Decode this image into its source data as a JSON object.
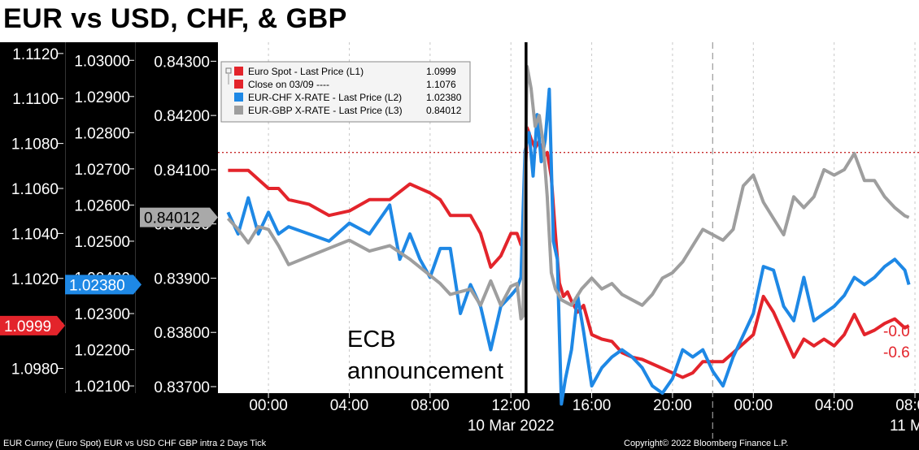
{
  "chart_data": {
    "type": "line",
    "title": "EUR vs USD, CHF, & GBP",
    "x_tick_labels": [
      "00:00",
      "04:00",
      "08:00",
      "12:00",
      "16:00",
      "20:00",
      "00:00",
      "04:00",
      "08:00"
    ],
    "date_labels": [
      "10 Mar 2022",
      "11 M"
    ],
    "axes": [
      {
        "id": "L1",
        "ticks": [
          "1.1120",
          "1.1100",
          "1.1080",
          "1.1060",
          "1.1040",
          "1.1020",
          "1.1000",
          "1.0980"
        ],
        "ylim": [
          1.0969,
          1.1125
        ]
      },
      {
        "id": "L2",
        "ticks": [
          "1.03000",
          "1.02900",
          "1.02800",
          "1.02700",
          "1.02600",
          "1.02500",
          "1.02400",
          "1.02300",
          "1.02200",
          "1.02100"
        ],
        "ylim": [
          1.0208,
          1.0305
        ]
      },
      {
        "id": "L3",
        "ticks": [
          "0.84300",
          "0.84200",
          "0.84100",
          "0.84000",
          "0.83900",
          "0.83800",
          "0.83700"
        ],
        "ylim": [
          0.83688,
          0.84335
        ]
      }
    ],
    "last_values": {
      "L1": "1.0999",
      "L2": "1.02380",
      "L3": "0.84012"
    },
    "close_line": {
      "axis": "L1",
      "value": 1.1076
    },
    "event": {
      "label_line1": "ECB",
      "label_line2": "announcement",
      "x_hour": 12.75
    },
    "right_labels": [
      "-0.0",
      "-0.6"
    ],
    "legend": [
      {
        "label": "Euro Spot - Last Price (L1)",
        "value": "1.0999",
        "color": "#e3242b"
      },
      {
        "label": "Close on 03/09 ----",
        "value": "1.1076",
        "color": "#e3242b"
      },
      {
        "label": "EUR-CHF X-RATE - Last Price (L2)",
        "value": "1.02380",
        "color": "#1e88e5"
      },
      {
        "label": "EUR-GBP X-RATE - Last Price (L3)",
        "value": "0.84012",
        "color": "#9e9e9e"
      }
    ],
    "series": [
      {
        "name": "Euro Spot - Last Price (L1)",
        "axis": "L1",
        "color": "#e3242b",
        "points": [
          [
            -2,
            1.1068
          ],
          [
            -1.5,
            1.1068
          ],
          [
            -1,
            1.1068
          ],
          [
            0,
            1.106
          ],
          [
            0.5,
            1.106
          ],
          [
            1,
            1.1055
          ],
          [
            2,
            1.1053
          ],
          [
            3,
            1.1048
          ],
          [
            4,
            1.105
          ],
          [
            5,
            1.1055
          ],
          [
            6,
            1.1055
          ],
          [
            7,
            1.1062
          ],
          [
            8,
            1.1058
          ],
          [
            8.5,
            1.1055
          ],
          [
            9,
            1.1048
          ],
          [
            10,
            1.1048
          ],
          [
            10.5,
            1.104
          ],
          [
            11,
            1.1025
          ],
          [
            11.5,
            1.103
          ],
          [
            12,
            1.104
          ],
          [
            12.3,
            1.104
          ],
          [
            12.5,
            1.1035
          ],
          [
            12.6,
            1.1038
          ],
          [
            12.8,
            1.1087
          ],
          [
            13,
            1.1082
          ],
          [
            13.2,
            1.1078
          ],
          [
            13.4,
            1.1081
          ],
          [
            13.6,
            1.1074
          ],
          [
            13.8,
            1.1076
          ],
          [
            14,
            1.1065
          ],
          [
            14.2,
            1.104
          ],
          [
            14.4,
            1.1018
          ],
          [
            14.6,
            1.1012
          ],
          [
            14.8,
            1.1014
          ],
          [
            15,
            1.101
          ],
          [
            15.3,
            1.1005
          ],
          [
            15.6,
            1.1008
          ],
          [
            16,
            1.0995
          ],
          [
            16.5,
            1.0993
          ],
          [
            17,
            1.0992
          ],
          [
            17.5,
            1.0987
          ],
          [
            18,
            1.0985
          ],
          [
            18.5,
            1.0984
          ],
          [
            19,
            1.0982
          ],
          [
            19.5,
            1.098
          ],
          [
            20,
            1.0978
          ],
          [
            20.5,
            1.0976
          ],
          [
            21,
            1.0978
          ],
          [
            21.5,
            1.0983
          ],
          [
            22,
            1.0983
          ],
          [
            22.5,
            1.0983
          ],
          [
            23,
            1.0987
          ],
          [
            24,
            1.0995
          ],
          [
            24.5,
            1.1012
          ],
          [
            25,
            1.1005
          ],
          [
            25.5,
            1.0995
          ],
          [
            26,
            1.0985
          ],
          [
            26.5,
            1.0993
          ],
          [
            27,
            1.099
          ],
          [
            27.5,
            1.0993
          ],
          [
            28,
            1.099
          ],
          [
            28.5,
            1.0995
          ],
          [
            29,
            1.1004
          ],
          [
            29.5,
            1.0995
          ],
          [
            30,
            1.0997
          ],
          [
            30.5,
            1.1
          ],
          [
            31,
            1.1002
          ],
          [
            31.5,
            1.0998
          ],
          [
            31.7,
            1.0999
          ]
        ]
      },
      {
        "name": "EUR-CHF X-RATE - Last Price (L2)",
        "axis": "L2",
        "color": "#1e88e5",
        "points": [
          [
            -2,
            1.0258
          ],
          [
            -1.5,
            1.0252
          ],
          [
            -1,
            1.0262
          ],
          [
            -0.5,
            1.0252
          ],
          [
            0,
            1.0258
          ],
          [
            0.5,
            1.0252
          ],
          [
            1,
            1.0254
          ],
          [
            2,
            1.0252
          ],
          [
            3,
            1.025
          ],
          [
            4,
            1.0255
          ],
          [
            5,
            1.0252
          ],
          [
            6,
            1.026
          ],
          [
            6.5,
            1.0245
          ],
          [
            7,
            1.0252
          ],
          [
            7.5,
            1.0245
          ],
          [
            8,
            1.024
          ],
          [
            8.5,
            1.0248
          ],
          [
            9,
            1.0248
          ],
          [
            9.5,
            1.023
          ],
          [
            10,
            1.0238
          ],
          [
            10.5,
            1.0232
          ],
          [
            11,
            1.022
          ],
          [
            11.5,
            1.0232
          ],
          [
            12,
            1.0235
          ],
          [
            12.3,
            1.0237
          ],
          [
            12.5,
            1.024
          ],
          [
            12.7,
            1.0275
          ],
          [
            12.9,
            1.028
          ],
          [
            13.1,
            1.0268
          ],
          [
            13.3,
            1.0285
          ],
          [
            13.5,
            1.0272
          ],
          [
            13.7,
            1.0278
          ],
          [
            13.9,
            1.0292
          ],
          [
            14.1,
            1.025
          ],
          [
            14.3,
            1.0245
          ],
          [
            14.5,
            1.0205
          ],
          [
            14.7,
            1.0212
          ],
          [
            15,
            1.022
          ],
          [
            15.3,
            1.0235
          ],
          [
            15.6,
            1.0225
          ],
          [
            16,
            1.021
          ],
          [
            16.5,
            1.0215
          ],
          [
            17,
            1.0218
          ],
          [
            17.5,
            1.022
          ],
          [
            18,
            1.0218
          ],
          [
            18.5,
            1.0215
          ],
          [
            19,
            1.021
          ],
          [
            19.5,
            1.0208
          ],
          [
            20,
            1.0212
          ],
          [
            20.5,
            1.022
          ],
          [
            21,
            1.0218
          ],
          [
            21.5,
            1.022
          ],
          [
            22,
            1.0214
          ],
          [
            22.5,
            1.021
          ],
          [
            23,
            1.0218
          ],
          [
            24,
            1.023
          ],
          [
            24.5,
            1.0243
          ],
          [
            25,
            1.0242
          ],
          [
            25.5,
            1.0232
          ],
          [
            26,
            1.0228
          ],
          [
            26.5,
            1.024
          ],
          [
            27,
            1.0228
          ],
          [
            27.5,
            1.023
          ],
          [
            28,
            1.0232
          ],
          [
            28.5,
            1.0235
          ],
          [
            29,
            1.024
          ],
          [
            29.5,
            1.0238
          ],
          [
            30,
            1.024
          ],
          [
            30.5,
            1.0243
          ],
          [
            31,
            1.0245
          ],
          [
            31.5,
            1.0242
          ],
          [
            31.7,
            1.0238
          ]
        ]
      },
      {
        "name": "EUR-GBP X-RATE - Last Price (L3)",
        "axis": "L3",
        "color": "#9e9e9e",
        "points": [
          [
            -2,
            0.8401
          ],
          [
            -1.5,
            0.8399
          ],
          [
            -1,
            0.83965
          ],
          [
            -0.5,
            0.83995
          ],
          [
            0,
            0.8399
          ],
          [
            0.5,
            0.8396
          ],
          [
            1,
            0.83925
          ],
          [
            2,
            0.8394
          ],
          [
            3,
            0.83955
          ],
          [
            4,
            0.8397
          ],
          [
            5,
            0.8395
          ],
          [
            6,
            0.8396
          ],
          [
            7,
            0.83935
          ],
          [
            8,
            0.83905
          ],
          [
            8.5,
            0.8389
          ],
          [
            9,
            0.8387
          ],
          [
            10,
            0.8388
          ],
          [
            10.5,
            0.8385
          ],
          [
            11,
            0.83895
          ],
          [
            11.5,
            0.8385
          ],
          [
            12,
            0.83885
          ],
          [
            12.3,
            0.8389
          ],
          [
            12.5,
            0.83825
          ],
          [
            12.6,
            0.8383
          ],
          [
            12.8,
            0.8429
          ],
          [
            13,
            0.8425
          ],
          [
            13.2,
            0.8418
          ],
          [
            13.4,
            0.842
          ],
          [
            13.6,
            0.8415
          ],
          [
            13.8,
            0.8405
          ],
          [
            14,
            0.8391
          ],
          [
            14.2,
            0.8388
          ],
          [
            14.5,
            0.8386
          ],
          [
            15,
            0.8385
          ],
          [
            15.5,
            0.8388
          ],
          [
            16,
            0.839
          ],
          [
            16.5,
            0.8388
          ],
          [
            17,
            0.8389
          ],
          [
            17.5,
            0.8387
          ],
          [
            18,
            0.8386
          ],
          [
            18.5,
            0.8385
          ],
          [
            19,
            0.8387
          ],
          [
            19.5,
            0.839
          ],
          [
            20,
            0.8391
          ],
          [
            20.5,
            0.8393
          ],
          [
            21,
            0.8396
          ],
          [
            21.5,
            0.8399
          ],
          [
            22,
            0.8398
          ],
          [
            22.5,
            0.8397
          ],
          [
            23,
            0.8399
          ],
          [
            23.5,
            0.8407
          ],
          [
            24,
            0.8409
          ],
          [
            24.5,
            0.8404
          ],
          [
            25,
            0.8401
          ],
          [
            25.5,
            0.8398
          ],
          [
            26,
            0.8405
          ],
          [
            26.5,
            0.8403
          ],
          [
            27,
            0.8405
          ],
          [
            27.5,
            0.841
          ],
          [
            28,
            0.8409
          ],
          [
            28.5,
            0.841
          ],
          [
            29,
            0.8413
          ],
          [
            29.5,
            0.8408
          ],
          [
            30,
            0.8408
          ],
          [
            30.5,
            0.8405
          ],
          [
            31,
            0.8403
          ],
          [
            31.5,
            0.84015
          ],
          [
            31.7,
            0.84012
          ]
        ]
      }
    ]
  },
  "footer": {
    "left": "EUR Curncy (Euro Spot) EUR vs USD CHF GBP intra 2 Days  Tick",
    "right": "Copyright© 2022 Bloomberg Finance L.P."
  }
}
